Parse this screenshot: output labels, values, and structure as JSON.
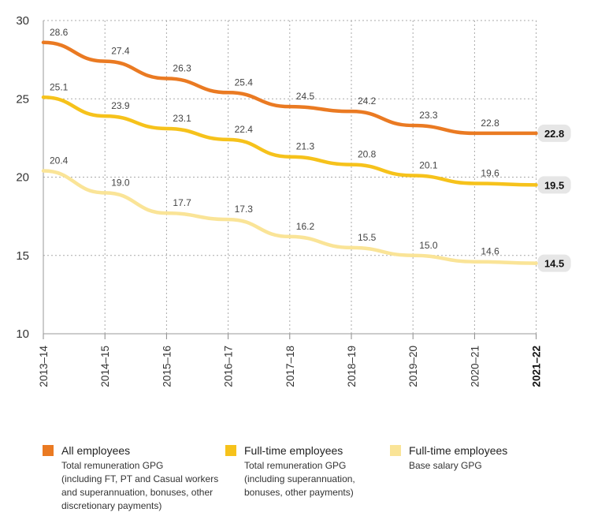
{
  "chart_data": {
    "type": "line",
    "categories": [
      "2013–14",
      "2014–15",
      "2015–16",
      "2016–17",
      "2017–18",
      "2018–19",
      "2019–20",
      "2020–21",
      "2021–22"
    ],
    "ylim": [
      10,
      30
    ],
    "yticks": [
      10,
      15,
      20,
      25,
      30
    ],
    "grid": true,
    "series": [
      {
        "name": "All employees",
        "description": "Total remuneration GPG\n(including FT, PT and Casual workers\nand superannuation, bonuses, other\ndiscretionary payments)",
        "color": "#ea7a22",
        "values": [
          28.6,
          27.4,
          26.3,
          25.4,
          24.5,
          24.2,
          23.3,
          22.8,
          22.8
        ]
      },
      {
        "name": "Full-time employees",
        "description": "Total remuneration GPG\n(including superannuation,\nbonuses, other payments)",
        "color": "#f6c21b",
        "values": [
          25.1,
          23.9,
          23.1,
          22.4,
          21.3,
          20.8,
          20.1,
          19.6,
          19.5
        ]
      },
      {
        "name": "Full-time employees",
        "description": "Base salary GPG",
        "color": "#fae497",
        "values": [
          20.4,
          19.0,
          17.7,
          17.3,
          16.2,
          15.5,
          15.0,
          14.6,
          14.5
        ]
      }
    ]
  }
}
